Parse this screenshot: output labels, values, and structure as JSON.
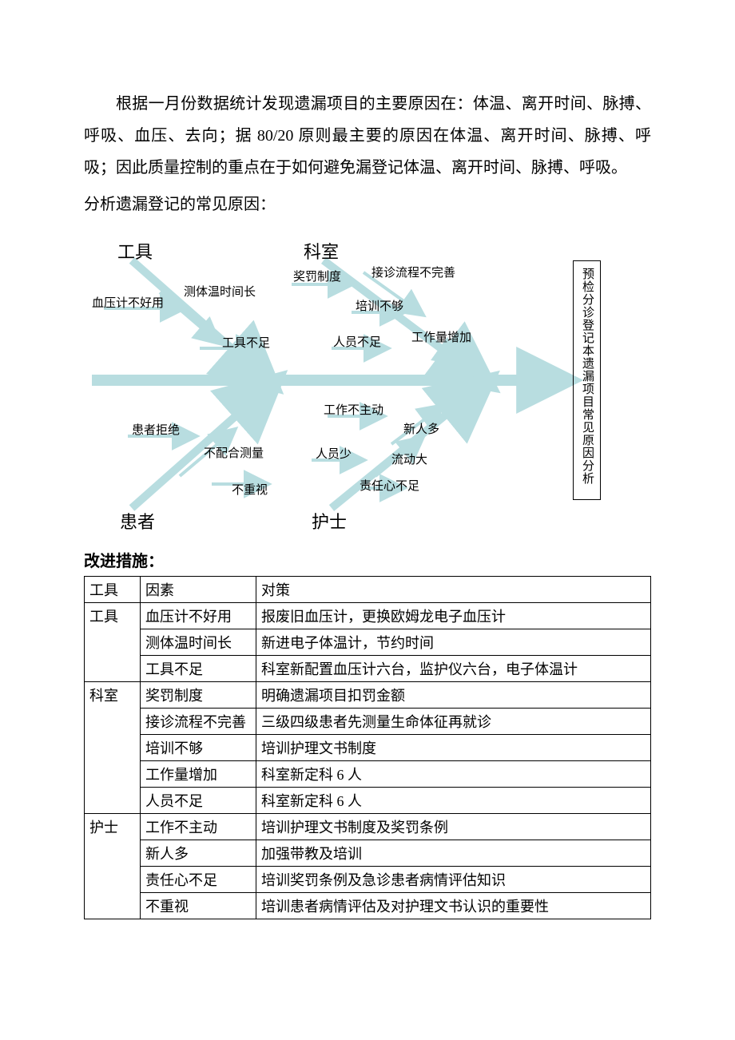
{
  "paragraph": "根据一月份数据统计发现遗漏项目的主要原因在：体温、离开时间、脉搏、呼吸、血压、去向；据 80/20 原则最主要的原因在体温、离开时间、脉搏、呼吸；因此质量控制的重点在于如何避免漏登记体温、离开时间、脉搏、呼吸。",
  "sub_paragraph": "分析遗漏登记的常见原因：",
  "fishbone": {
    "type": "fishbone",
    "arrow_color": "#b8dde0",
    "categories": {
      "tool": "工具",
      "dept": "科室",
      "patient": "患者",
      "nurse": "护士"
    },
    "causes": {
      "tool1": "血压计不好用",
      "tool2": "测体温时间长",
      "tool3": "工具不足",
      "dept1": "奖罚制度",
      "dept2": "接诊流程不完善",
      "dept3": "培训不够",
      "dept4": "人员不足",
      "dept5": "工作量增加",
      "pat1": "患者拒绝",
      "pat2": "不配合测量",
      "pat3": "不重视",
      "nur1": "工作不主动",
      "nur2": "新人多",
      "nur3": "人员少",
      "nur4": "流动大",
      "nur5": "责任心不足"
    },
    "effect": "预检分诊登记本遗漏项目常见原因分析"
  },
  "improve_title": "改进措施：",
  "table": {
    "headers": {
      "c0": "工具",
      "c1": "因素",
      "c2": "对策"
    },
    "groups": [
      "工具",
      "科室",
      "护士"
    ],
    "rows": [
      {
        "g": "工具",
        "f": "血压计不好用",
        "a": "报废旧血压计，更换欧姆龙电子血压计"
      },
      {
        "g": "",
        "f": "测体温时间长",
        "a": "新进电子体温计，节约时间"
      },
      {
        "g": "",
        "f": "工具不足",
        "a": "科室新配置血压计六台，监护仪六台，电子体温计"
      },
      {
        "g": "科室",
        "f": "奖罚制度",
        "a": "明确遗漏项目扣罚金额"
      },
      {
        "g": "",
        "f": "接诊流程不完善",
        "a": "三级四级患者先测量生命体征再就诊"
      },
      {
        "g": "",
        "f": "培训不够",
        "a": "培训护理文书制度"
      },
      {
        "g": "",
        "f": "工作量增加",
        "a": "科室新定科 6 人"
      },
      {
        "g": "",
        "f": "人员不足",
        "a": "科室新定科 6 人"
      },
      {
        "g": "护士",
        "f": "工作不主动",
        "a": "培训护理文书制度及奖罚条例"
      },
      {
        "g": "",
        "f": "新人多",
        "a": "加强带教及培训"
      },
      {
        "g": "",
        "f": "责任心不足",
        "a": "培训奖罚条例及急诊患者病情评估知识"
      },
      {
        "g": "",
        "f": "不重视",
        "a": "培训患者病情评估及对护理文书认识的重要性"
      }
    ]
  }
}
